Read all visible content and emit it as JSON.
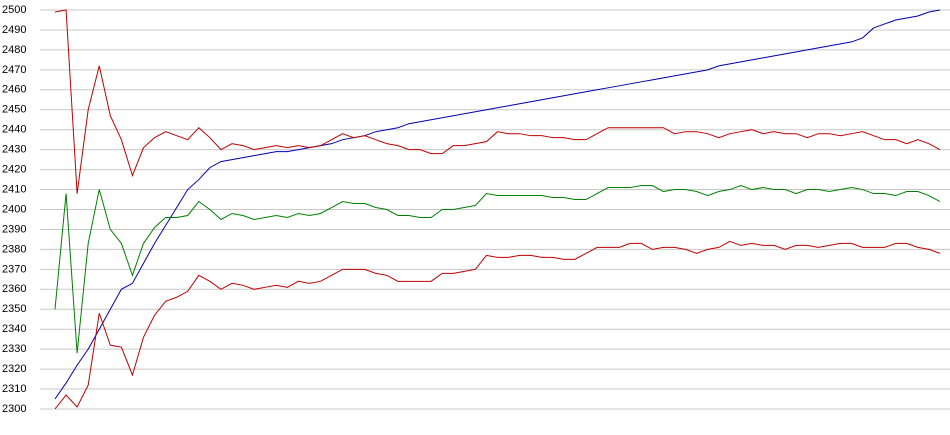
{
  "chart_data": {
    "type": "line",
    "ylim": [
      2300,
      2500
    ],
    "yticks": [
      2300,
      2310,
      2320,
      2330,
      2340,
      2350,
      2360,
      2370,
      2380,
      2390,
      2400,
      2410,
      2420,
      2430,
      2440,
      2450,
      2460,
      2470,
      2480,
      2490,
      2500
    ],
    "grid": true,
    "series": [
      {
        "color": "#0000b0",
        "values": [
          2305,
          2313,
          2322,
          2330,
          2340,
          2350,
          2360,
          2363,
          2373,
          2383,
          2392,
          2401,
          2410,
          2415,
          2421,
          2424,
          2425,
          2426,
          2427,
          2428,
          2429,
          2429,
          2430,
          2431,
          2432,
          2433,
          2435,
          2436,
          2437,
          2439,
          2440,
          2441,
          2443,
          2444,
          2445,
          2446,
          2447,
          2448,
          2449,
          2450,
          2451,
          2452,
          2453,
          2454,
          2455,
          2456,
          2457,
          2458,
          2459,
          2460,
          2461,
          2462,
          2463,
          2464,
          2465,
          2466,
          2467,
          2468,
          2469,
          2470,
          2472,
          2473,
          2474,
          2475,
          2476,
          2477,
          2478,
          2479,
          2480,
          2481,
          2482,
          2483,
          2484,
          2486,
          2491,
          2493,
          2495,
          2496,
          2497,
          2499,
          2500
        ]
      },
      {
        "color": "#c00000",
        "values": [
          2499,
          2500,
          2408,
          2450,
          2472,
          2447,
          2435,
          2417,
          2431,
          2436,
          2439,
          2437,
          2435,
          2441,
          2436,
          2430,
          2433,
          2432,
          2430,
          2431,
          2432,
          2431,
          2432,
          2431,
          2432,
          2435,
          2438,
          2436,
          2437,
          2435,
          2433,
          2432,
          2430,
          2430,
          2428,
          2428,
          2432,
          2432,
          2433,
          2434,
          2439,
          2438,
          2438,
          2437,
          2437,
          2436,
          2436,
          2435,
          2435,
          2438,
          2441,
          2441,
          2441,
          2441,
          2441,
          2441,
          2438,
          2439,
          2439,
          2438,
          2436,
          2438,
          2439,
          2440,
          2438,
          2439,
          2438,
          2438,
          2436,
          2438,
          2438,
          2437,
          2438,
          2439,
          2437,
          2435,
          2435,
          2433,
          2435,
          2433,
          2430
        ]
      },
      {
        "color": "#008000",
        "values": [
          2350,
          2408,
          2328,
          2383,
          2410,
          2390,
          2383,
          2367,
          2383,
          2391,
          2396,
          2396,
          2397,
          2404,
          2400,
          2395,
          2398,
          2397,
          2395,
          2396,
          2397,
          2396,
          2398,
          2397,
          2398,
          2401,
          2404,
          2403,
          2403,
          2401,
          2400,
          2397,
          2397,
          2396,
          2396,
          2400,
          2400,
          2401,
          2402,
          2408,
          2407,
          2407,
          2407,
          2407,
          2407,
          2406,
          2406,
          2405,
          2405,
          2408,
          2411,
          2411,
          2411,
          2412,
          2412,
          2409,
          2410,
          2410,
          2409,
          2407,
          2409,
          2410,
          2412,
          2410,
          2411,
          2410,
          2410,
          2408,
          2410,
          2410,
          2409,
          2410,
          2411,
          2410,
          2408,
          2408,
          2407,
          2409,
          2409,
          2407,
          2404
        ]
      },
      {
        "color": "#c00000",
        "values": [
          2300,
          2307,
          2301,
          2312,
          2348,
          2332,
          2331,
          2317,
          2336,
          2347,
          2354,
          2356,
          2359,
          2367,
          2364,
          2360,
          2363,
          2362,
          2360,
          2361,
          2362,
          2361,
          2364,
          2363,
          2364,
          2367,
          2370,
          2370,
          2370,
          2368,
          2367,
          2364,
          2364,
          2364,
          2364,
          2368,
          2368,
          2369,
          2370,
          2377,
          2376,
          2376,
          2377,
          2377,
          2376,
          2376,
          2375,
          2375,
          2378,
          2381,
          2381,
          2381,
          2383,
          2383,
          2380,
          2381,
          2381,
          2380,
          2378,
          2380,
          2381,
          2384,
          2382,
          2383,
          2382,
          2382,
          2380,
          2382,
          2382,
          2381,
          2382,
          2383,
          2383,
          2381,
          2381,
          2381,
          2383,
          2383,
          2381,
          2380,
          2378
        ]
      }
    ]
  }
}
